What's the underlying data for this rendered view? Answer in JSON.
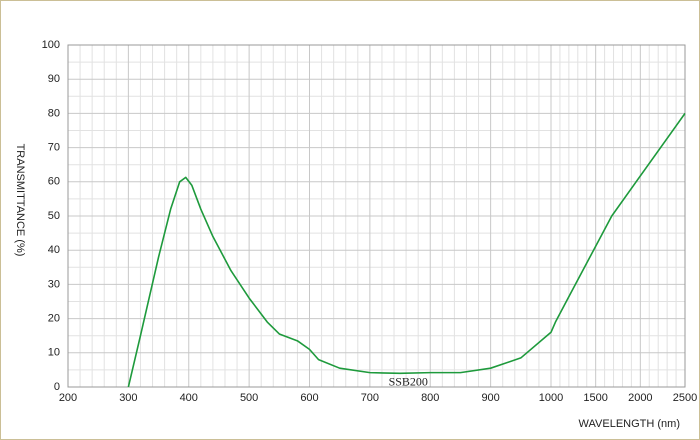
{
  "chart_data": {
    "type": "line",
    "y_label": "TRANSMITTANCE  (%)",
    "x_label": "WAVELENGTH (nm)",
    "x": [
      300,
      320,
      350,
      370,
      385,
      395,
      405,
      420,
      440,
      470,
      500,
      530,
      550,
      580,
      600,
      615,
      650,
      700,
      750,
      800,
      850,
      900,
      950,
      1000,
      1050,
      1212,
      1680,
      2500
    ],
    "series": [
      {
        "name": "SSB200",
        "color": "#1e9a3c",
        "values": [
          0,
          15,
          38,
          52,
          60,
          61.3,
          59,
          52,
          44,
          34,
          26,
          19,
          15.5,
          13.5,
          11,
          8,
          5.5,
          4.2,
          4,
          4.2,
          4.2,
          5.5,
          8.5,
          16,
          19,
          27,
          50,
          80
        ]
      }
    ],
    "xlim": [
      200,
      2500
    ],
    "ylim": [
      0,
      100
    ],
    "xticks": [
      200,
      300,
      400,
      500,
      600,
      700,
      800,
      900,
      1000,
      1500,
      2000,
      2500
    ],
    "yticks": [
      0,
      10,
      20,
      30,
      40,
      50,
      60,
      70,
      80,
      90,
      100
    ],
    "grid": true
  }
}
